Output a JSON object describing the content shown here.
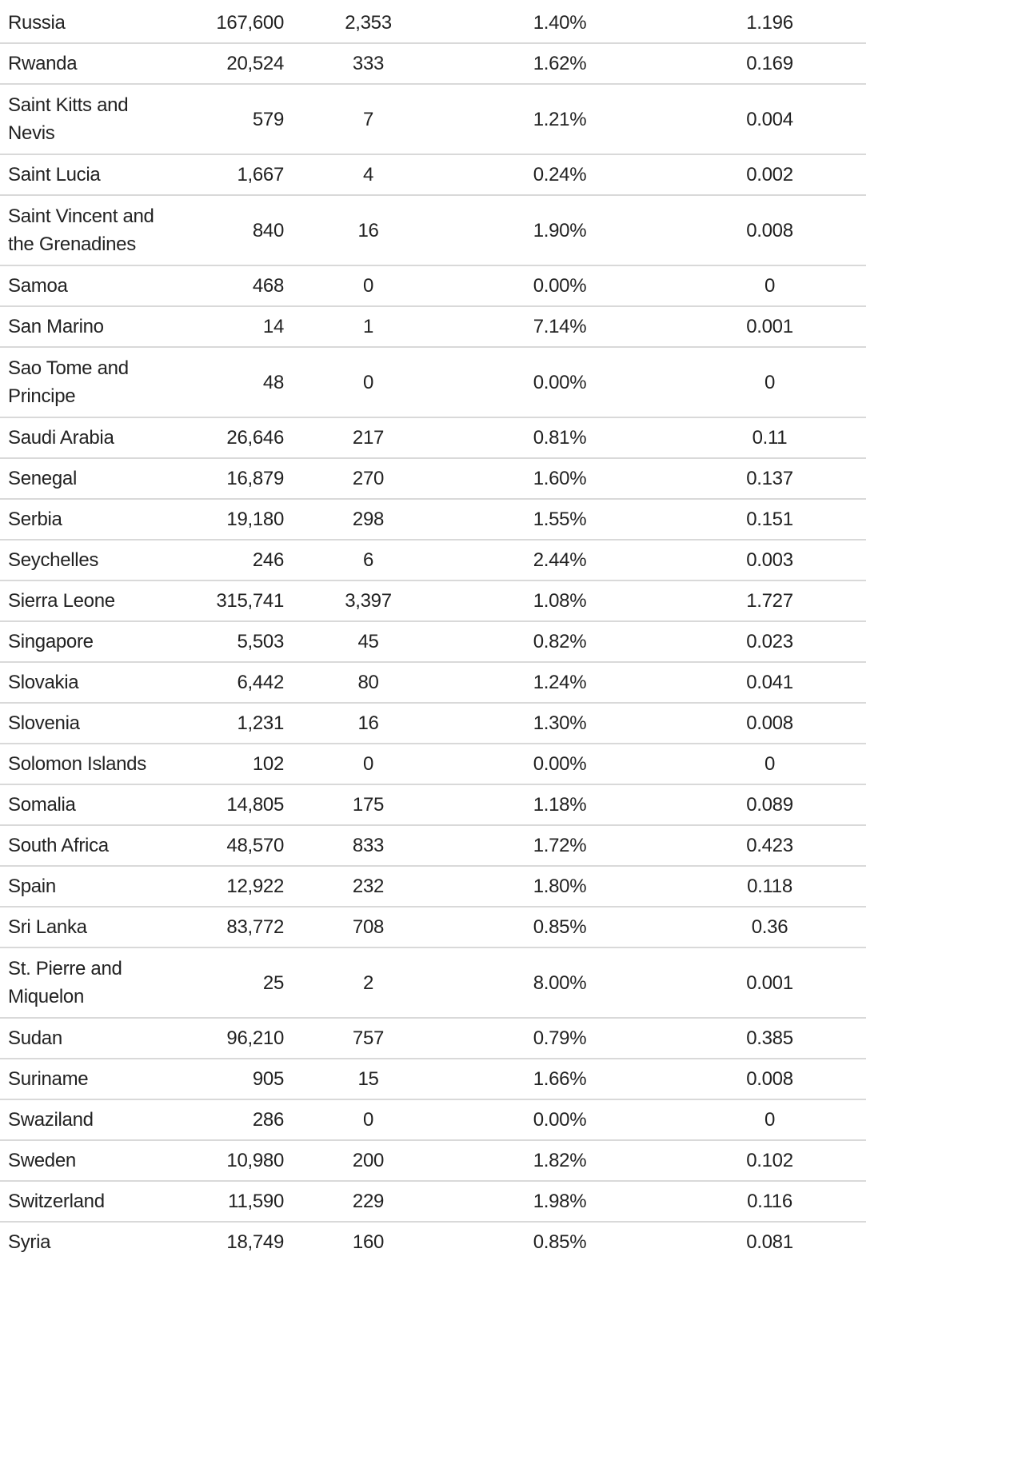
{
  "table": {
    "rows": [
      {
        "country": "Russia",
        "cases": "167,600",
        "deaths": "2,353",
        "rate": "1.40%",
        "mortality": "1.196"
      },
      {
        "country": "Rwanda",
        "cases": "20,524",
        "deaths": "333",
        "rate": "1.62%",
        "mortality": "0.169"
      },
      {
        "country": "Saint Kitts and Nevis",
        "cases": "579",
        "deaths": "7",
        "rate": "1.21%",
        "mortality": "0.004"
      },
      {
        "country": "Saint Lucia",
        "cases": "1,667",
        "deaths": "4",
        "rate": "0.24%",
        "mortality": "0.002"
      },
      {
        "country": "Saint Vincent and the Grenadines",
        "cases": "840",
        "deaths": "16",
        "rate": "1.90%",
        "mortality": "0.008"
      },
      {
        "country": "Samoa",
        "cases": "468",
        "deaths": "0",
        "rate": "0.00%",
        "mortality": "0"
      },
      {
        "country": "San Marino",
        "cases": "14",
        "deaths": "1",
        "rate": "7.14%",
        "mortality": "0.001"
      },
      {
        "country": "Sao Tome and Principe",
        "cases": "48",
        "deaths": "0",
        "rate": "0.00%",
        "mortality": "0"
      },
      {
        "country": "Saudi Arabia",
        "cases": "26,646",
        "deaths": "217",
        "rate": "0.81%",
        "mortality": "0.11"
      },
      {
        "country": "Senegal",
        "cases": "16,879",
        "deaths": "270",
        "rate": "1.60%",
        "mortality": "0.137"
      },
      {
        "country": "Serbia",
        "cases": "19,180",
        "deaths": "298",
        "rate": "1.55%",
        "mortality": "0.151"
      },
      {
        "country": "Seychelles",
        "cases": "246",
        "deaths": "6",
        "rate": "2.44%",
        "mortality": "0.003"
      },
      {
        "country": "Sierra Leone",
        "cases": "315,741",
        "deaths": "3,397",
        "rate": "1.08%",
        "mortality": "1.727"
      },
      {
        "country": "Singapore",
        "cases": "5,503",
        "deaths": "45",
        "rate": "0.82%",
        "mortality": "0.023"
      },
      {
        "country": "Slovakia",
        "cases": "6,442",
        "deaths": "80",
        "rate": "1.24%",
        "mortality": "0.041"
      },
      {
        "country": "Slovenia",
        "cases": "1,231",
        "deaths": "16",
        "rate": "1.30%",
        "mortality": "0.008"
      },
      {
        "country": "Solomon Islands",
        "cases": "102",
        "deaths": "0",
        "rate": "0.00%",
        "mortality": "0"
      },
      {
        "country": "Somalia",
        "cases": "14,805",
        "deaths": "175",
        "rate": "1.18%",
        "mortality": "0.089"
      },
      {
        "country": "South Africa",
        "cases": "48,570",
        "deaths": "833",
        "rate": "1.72%",
        "mortality": "0.423"
      },
      {
        "country": "Spain",
        "cases": "12,922",
        "deaths": "232",
        "rate": "1.80%",
        "mortality": "0.118"
      },
      {
        "country": "Sri Lanka",
        "cases": "83,772",
        "deaths": "708",
        "rate": "0.85%",
        "mortality": "0.36"
      },
      {
        "country": "St. Pierre and Miquelon",
        "cases": "25",
        "deaths": "2",
        "rate": "8.00%",
        "mortality": "0.001"
      },
      {
        "country": "Sudan",
        "cases": "96,210",
        "deaths": "757",
        "rate": "0.79%",
        "mortality": "0.385"
      },
      {
        "country": "Suriname",
        "cases": "905",
        "deaths": "15",
        "rate": "1.66%",
        "mortality": "0.008"
      },
      {
        "country": "Swaziland",
        "cases": "286",
        "deaths": "0",
        "rate": "0.00%",
        "mortality": "0"
      },
      {
        "country": "Sweden",
        "cases": "10,980",
        "deaths": "200",
        "rate": "1.82%",
        "mortality": "0.102"
      },
      {
        "country": "Switzerland",
        "cases": "11,590",
        "deaths": "229",
        "rate": "1.98%",
        "mortality": "0.116"
      },
      {
        "country": "Syria",
        "cases": "18,749",
        "deaths": "160",
        "rate": "0.85%",
        "mortality": "0.081"
      }
    ]
  }
}
